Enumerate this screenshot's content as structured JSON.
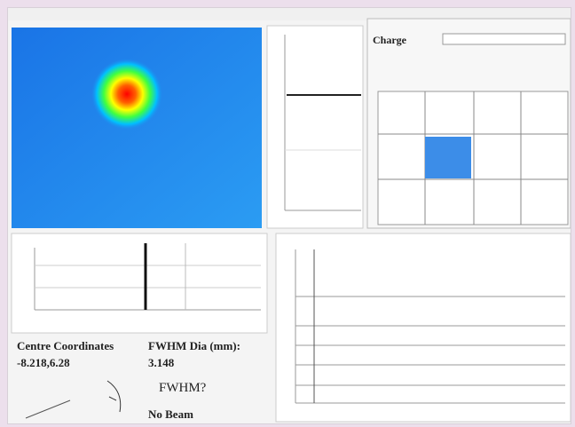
{
  "panel": {
    "button": "Charge"
  },
  "readout": {
    "centre_label": "Centre Coordinates",
    "centre_value": "-8.218,6.28",
    "fwhm_label": "FWHM Dia (mm):",
    "fwhm_value": "3.148",
    "fwhm_question": "FWHM?",
    "status": "No Beam"
  }
}
